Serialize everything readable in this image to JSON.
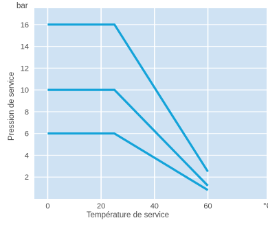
{
  "chart_data": {
    "type": "line",
    "title": "",
    "xlabel": "Température de service",
    "ylabel": "Pression de service",
    "y_unit": "bar",
    "x_unit": "°C",
    "xlim": [
      -5,
      82
    ],
    "ylim": [
      0,
      17.5
    ],
    "x_ticks": [
      0,
      20,
      40,
      60
    ],
    "y_ticks": [
      2,
      4,
      6,
      8,
      10,
      12,
      14,
      16
    ],
    "grid": true,
    "legend": "none",
    "colors": {
      "plot_background": "#cfe2f3",
      "grid": "#ffffff",
      "line": "#14a3d9",
      "text": "#4a4a4a"
    },
    "series": [
      {
        "x": [
          0,
          25,
          60
        ],
        "values": [
          16,
          16,
          2.5
        ]
      },
      {
        "x": [
          0,
          25,
          60
        ],
        "values": [
          10,
          10,
          1.2
        ]
      },
      {
        "x": [
          0,
          25,
          60
        ],
        "values": [
          6,
          6,
          0.8
        ]
      }
    ]
  }
}
